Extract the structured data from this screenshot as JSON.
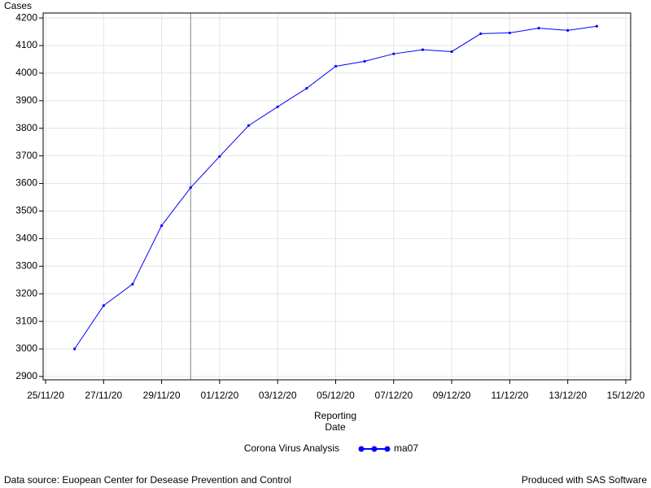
{
  "chart_data": {
    "type": "line",
    "y_label": "Cases",
    "x_label": "Reporting Date",
    "legend_title": "Corona Virus Analysis",
    "x": [
      "26/11/20",
      "27/11/20",
      "28/11/20",
      "29/11/20",
      "30/11/20",
      "01/12/20",
      "02/12/20",
      "03/12/20",
      "04/12/20",
      "05/12/20",
      "06/12/20",
      "07/12/20",
      "08/12/20",
      "09/12/20",
      "10/12/20",
      "11/12/20",
      "12/12/20",
      "13/12/20",
      "14/12/20"
    ],
    "series": [
      {
        "name": "ma07",
        "color": "#0000ff",
        "values": [
          3000,
          3157,
          3235,
          3447,
          3585,
          3698,
          3810,
          3878,
          3945,
          4025,
          4043,
          4070,
          4085,
          4078,
          4143,
          4146,
          4163,
          4155,
          4170
        ]
      }
    ],
    "xlim": [
      "25/11/20",
      "15/12/20"
    ],
    "xticks": [
      "25/11/20",
      "27/11/20",
      "29/11/20",
      "01/12/20",
      "03/12/20",
      "05/12/20",
      "07/12/20",
      "09/12/20",
      "11/12/20",
      "13/12/20",
      "15/12/20"
    ],
    "ylim": [
      2888,
      4218
    ],
    "yticks": [
      2900,
      3000,
      3100,
      3200,
      3300,
      3400,
      3500,
      3600,
      3700,
      3800,
      3900,
      4000,
      4100,
      4200
    ],
    "reference_line_x": "30/11/20",
    "grid": true,
    "footnote_left": "Data source: Euopean Center for Desease Prevention and Control",
    "footnote_right": "Produced with SAS Software"
  }
}
